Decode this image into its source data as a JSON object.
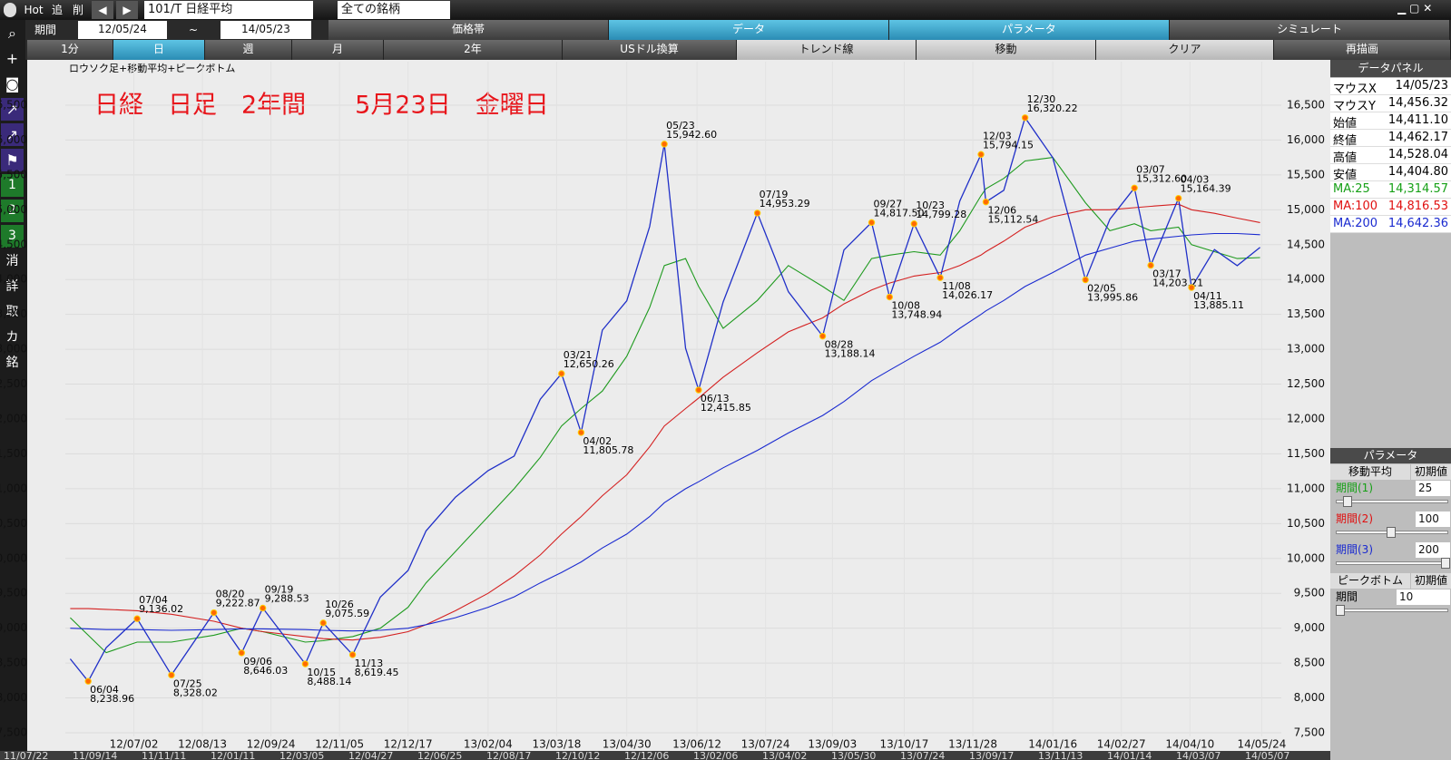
{
  "toolbar": {
    "items": [
      "Hot",
      "追",
      "削"
    ],
    "symbol": "101/T 日経平均",
    "filter": "全ての銘柄"
  },
  "period": {
    "label": "期間",
    "from": "12/05/24",
    "sep": "~",
    "to": "14/05/23"
  },
  "tabs": [
    "価格帯",
    "データ",
    "パラメータ",
    "シミュレート"
  ],
  "buttons": [
    "1分",
    "日",
    "週",
    "月",
    "2年",
    "USドル換算",
    "トレンド線",
    "移動",
    "クリア",
    "再描画"
  ],
  "sidebar": [
    "1",
    "2",
    "3",
    "消",
    "詳",
    "取",
    "カ",
    "銘"
  ],
  "chart_data": {
    "type": "line",
    "subtitle": "ロウソク足+移動平均+ピークボトム",
    "title": "日経　日足　2年間　　5月23日　金曜日",
    "x": [
      "12/05/24",
      "12/06/04",
      "12/06/15",
      "12/07/04",
      "12/07/25",
      "12/08/20",
      "12/09/06",
      "12/09/19",
      "12/10/15",
      "12/10/26",
      "12/11/13",
      "12/11/30",
      "12/12/17",
      "12/12/28",
      "13/01/15",
      "13/02/04",
      "13/02/20",
      "13/03/08",
      "13/03/21",
      "13/04/02",
      "13/04/15",
      "13/04/30",
      "13/05/14",
      "13/05/23",
      "13/06/05",
      "13/06/13",
      "13/06/28",
      "13/07/19",
      "13/08/07",
      "13/08/28",
      "13/09/10",
      "13/09/27",
      "13/10/08",
      "13/10/23",
      "13/11/08",
      "13/11/20",
      "13/12/03",
      "13/12/06",
      "13/12/17",
      "13/12/30",
      "14/01/16",
      "14/02/05",
      "14/02/20",
      "14/03/07",
      "14/03/17",
      "14/04/03",
      "14/04/11",
      "14/04/25",
      "14/05/09",
      "14/05/23"
    ],
    "series": [
      {
        "color": "#2030c8",
        "values": [
          8560,
          8238.96,
          8720,
          9136.02,
          8328.02,
          9222.87,
          8646.03,
          9288.53,
          8488.14,
          9075.59,
          8619.45,
          9446,
          9828,
          10395,
          10879,
          11260,
          11468,
          12283,
          12650.26,
          11805.78,
          13275,
          13694,
          14758,
          15942.6,
          13014,
          12415.85,
          13677,
          14953.29,
          13824,
          13188.14,
          14423,
          14817.5,
          13748.94,
          14799.28,
          14026.17,
          15126,
          15794.15,
          15112.54,
          15280,
          16320.22,
          15747,
          13995.86,
          14865,
          15312.6,
          14203.21,
          15164.39,
          13885.11,
          14429,
          14199,
          14462.17
        ]
      },
      {
        "color": "#1e9a1e",
        "values": [
          9150,
          8900,
          8650,
          8800,
          8800,
          8900,
          9000,
          8950,
          8800,
          8820,
          8880,
          9000,
          9300,
          9650,
          10100,
          10600,
          11000,
          11450,
          11900,
          12150,
          12400,
          12900,
          13600,
          14200,
          14300,
          13900,
          13300,
          13700,
          14200,
          13900,
          13700,
          14300,
          14350,
          14400,
          14350,
          14700,
          15200,
          15300,
          15450,
          15700,
          15750,
          15100,
          14700,
          14800,
          14700,
          14750,
          14500,
          14400,
          14300,
          14314.57
        ]
      },
      {
        "color": "#d42020",
        "values": [
          9280,
          9280,
          9270,
          9250,
          9200,
          9100,
          9000,
          8950,
          8880,
          8850,
          8830,
          8870,
          8950,
          9050,
          9250,
          9500,
          9750,
          10050,
          10350,
          10600,
          10900,
          11200,
          11600,
          11900,
          12150,
          12300,
          12600,
          12950,
          13250,
          13450,
          13650,
          13850,
          13950,
          14050,
          14100,
          14200,
          14350,
          14400,
          14550,
          14750,
          14900,
          15000,
          15000,
          15030,
          15050,
          15080,
          15000,
          14950,
          14880,
          14816.53
        ]
      },
      {
        "color": "#1a2ad0",
        "values": [
          9000,
          8990,
          8980,
          8980,
          8970,
          8980,
          8990,
          8990,
          8980,
          8970,
          8960,
          8970,
          9000,
          9050,
          9150,
          9300,
          9450,
          9650,
          9800,
          9950,
          10150,
          10350,
          10600,
          10800,
          11000,
          11100,
          11300,
          11550,
          11800,
          12050,
          12250,
          12550,
          12700,
          12900,
          13100,
          13300,
          13500,
          13550,
          13700,
          13900,
          14100,
          14350,
          14450,
          14550,
          14580,
          14620,
          14640,
          14660,
          14660,
          14642.36
        ]
      }
    ],
    "peaks": [
      {
        "date": "06/04",
        "value": 8238.96,
        "label": "8,238.96"
      },
      {
        "date": "07/04",
        "value": 9136.02,
        "label": "9,136.02"
      },
      {
        "date": "07/25",
        "value": 8328.02,
        "label": "8,328.02"
      },
      {
        "date": "08/20",
        "value": 9222.87,
        "label": "9,222.87"
      },
      {
        "date": "09/06",
        "value": 8646.03,
        "label": "8,646.03"
      },
      {
        "date": "09/19",
        "value": 9288.53,
        "label": "9,288.53"
      },
      {
        "date": "10/15",
        "value": 8488.14,
        "label": "8,488.14"
      },
      {
        "date": "10/26",
        "value": 9075.59,
        "label": "9,075.59"
      },
      {
        "date": "11/13",
        "value": 8619.45,
        "label": "8,619.45"
      },
      {
        "date": "03/21",
        "value": 12650.26,
        "label": "12,650.26"
      },
      {
        "date": "04/02",
        "value": 11805.78,
        "label": "11,805.78"
      },
      {
        "date": "05/23",
        "value": 15942.6,
        "label": "15,942.60"
      },
      {
        "date": "06/13",
        "value": 12415.85,
        "label": "12,415.85"
      },
      {
        "date": "07/19",
        "value": 14953.29,
        "label": "14,953.29"
      },
      {
        "date": "08/28",
        "value": 13188.14,
        "label": "13,188.14"
      },
      {
        "date": "09/27",
        "value": 14817.5,
        "label": "14,817.50"
      },
      {
        "date": "10/08",
        "value": 13748.94,
        "label": "13,748.94"
      },
      {
        "date": "10/23",
        "value": 14799.28,
        "label": "14,799.28"
      },
      {
        "date": "11/08",
        "value": 14026.17,
        "label": "14,026.17"
      },
      {
        "date": "12/03",
        "value": 15794.15,
        "label": "15,794.15"
      },
      {
        "date": "12/06",
        "value": 15112.54,
        "label": "15,112.54"
      },
      {
        "date": "12/30",
        "value": 16320.22,
        "label": "16,320.22"
      },
      {
        "date": "02/05",
        "value": 13995.86,
        "label": "13,995.86"
      },
      {
        "date": "03/07",
        "value": 15312.6,
        "label": "15,312.60"
      },
      {
        "date": "03/17",
        "value": 14203.21,
        "label": "14,203.21"
      },
      {
        "date": "04/03",
        "value": 15164.39,
        "label": "15,164.39"
      },
      {
        "date": "04/11",
        "value": 13885.11,
        "label": "13,885.11"
      }
    ],
    "xlim": [
      "12/05/21",
      "14/06/05"
    ],
    "xticks": [
      "12/07/02",
      "12/08/13",
      "12/09/24",
      "12/11/05",
      "12/12/17",
      "13/02/04",
      "13/03/18",
      "13/04/30",
      "13/06/12",
      "13/07/24",
      "13/09/03",
      "13/10/17",
      "13/11/28",
      "14/01/16",
      "14/02/27",
      "14/04/10",
      "14/05/24"
    ],
    "ylim": [
      7448,
      17124
    ],
    "yticks": [
      {
        "value": 7500,
        "label": "7,500"
      },
      {
        "value": 8000,
        "label": "8,000"
      },
      {
        "value": 8500,
        "label": "8,500"
      },
      {
        "value": 9000,
        "label": "9,000"
      },
      {
        "value": 9500,
        "label": "9,500"
      },
      {
        "value": 10000,
        "label": "10,000"
      },
      {
        "value": 10500,
        "label": "10,500"
      },
      {
        "value": 11000,
        "label": "11,000"
      },
      {
        "value": 11500,
        "label": "11,500"
      },
      {
        "value": 12000,
        "label": "12,000"
      },
      {
        "value": 12500,
        "label": "12,500"
      },
      {
        "value": 13000,
        "label": "13,000"
      },
      {
        "value": 13500,
        "label": "13,500"
      },
      {
        "value": 14000,
        "label": "14,000"
      },
      {
        "value": 14500,
        "label": "14,500"
      },
      {
        "value": 15000,
        "label": "15,000"
      },
      {
        "value": 15500,
        "label": "15,500"
      },
      {
        "value": 16000,
        "label": "16,000"
      },
      {
        "value": 16500,
        "label": "16,500"
      }
    ]
  },
  "data_panel": {
    "title": "データパネル",
    "rows": [
      [
        "マウスX",
        "14/05/23"
      ],
      [
        "マウスY",
        "14,456.32"
      ],
      [
        "始値",
        "14,411.10"
      ],
      [
        "終値",
        "14,462.17"
      ],
      [
        "高値",
        "14,528.04"
      ],
      [
        "安値",
        "14,404.80"
      ],
      [
        "MA:25",
        "14,314.57"
      ],
      [
        "MA:100",
        "14,816.53"
      ],
      [
        "MA:200",
        "14,642.36"
      ]
    ]
  },
  "parameters": {
    "title": "パラメータ",
    "ma_header": "移動平均",
    "default": "初期値",
    "rows": [
      [
        "期間(1)",
        "25"
      ],
      [
        "期間(2)",
        "100"
      ],
      [
        "期間(3)",
        "200"
      ]
    ],
    "peak_header": "ピークボトム",
    "peak_default": "初期値",
    "peak_rows": [
      [
        "期間",
        "10"
      ]
    ]
  },
  "scrollbar": [
    "11/07/22",
    "11/09/14",
    "11/11/11",
    "12/01/11",
    "12/03/05",
    "12/04/27",
    "12/06/25",
    "12/08/17",
    "12/10/12",
    "12/12/06",
    "13/02/06",
    "13/04/02",
    "13/05/30",
    "13/07/24",
    "13/09/17",
    "13/11/13",
    "14/01/14",
    "14/03/07",
    "14/05/07"
  ]
}
